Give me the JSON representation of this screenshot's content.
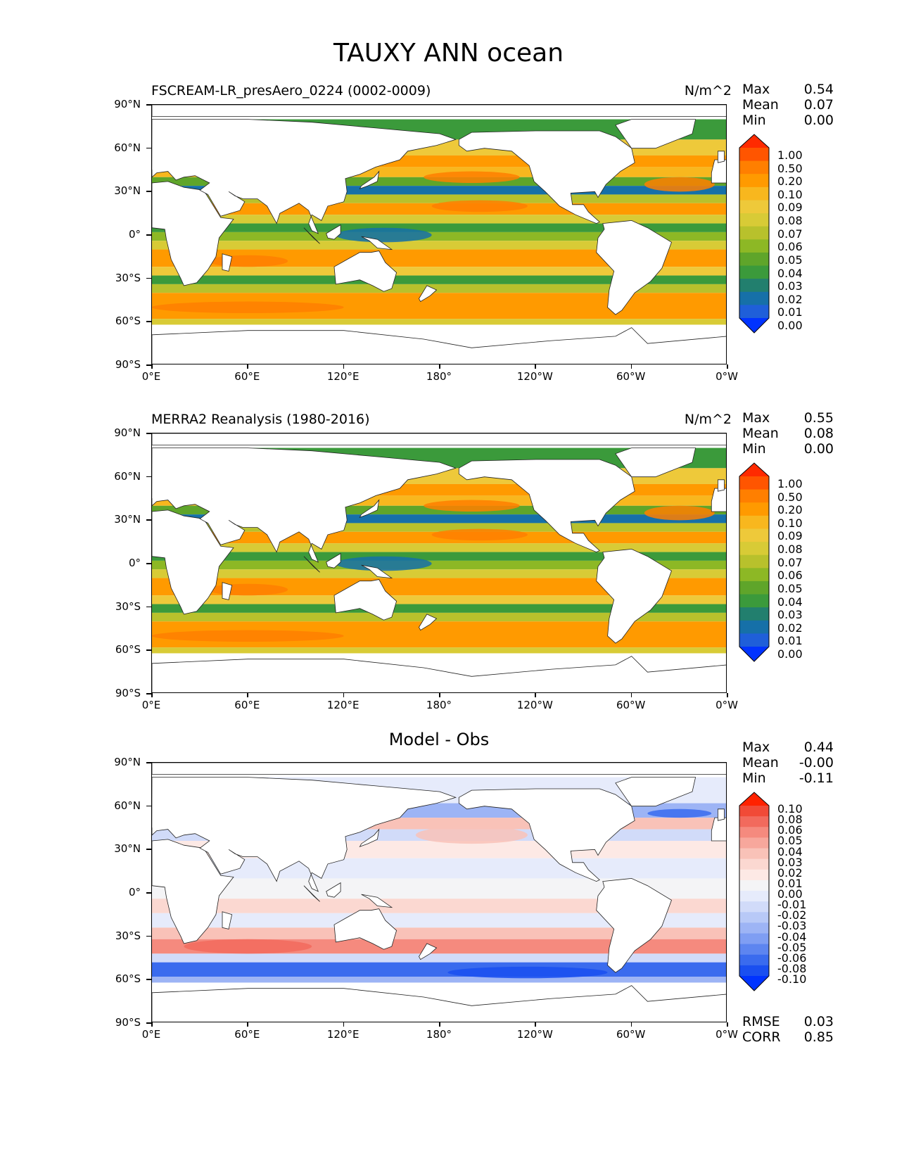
{
  "title": "TAUXY ANN ocean",
  "panels": [
    {
      "name": "model",
      "title_left": "FSCREAM-LR_presAero_0224 (0002-0009)",
      "title_right": "N/m^2",
      "title_center": "",
      "stats": {
        "Max": "0.54",
        "Mean": "0.07",
        "Min": "0.00"
      },
      "colorbar": {
        "labels": [
          "1.00",
          "0.50",
          "0.20",
          "0.10",
          "0.09",
          "0.08",
          "0.07",
          "0.06",
          "0.05",
          "0.04",
          "0.03",
          "0.02",
          "0.01",
          "0.00"
        ],
        "colors": [
          "#ff2a00",
          "#ff5500",
          "#ff7f00",
          "#ff9a00",
          "#f8b71e",
          "#eec93a",
          "#d8cb36",
          "#b8c12c",
          "#8db825",
          "#5fa52a",
          "#3b9a3b",
          "#227f6e",
          "#1670a8",
          "#1f5fd9",
          "#0033ff"
        ]
      }
    },
    {
      "name": "obs",
      "title_left": "MERRA2 Reanalysis (1980-2016)",
      "title_right": "N/m^2",
      "title_center": "",
      "stats": {
        "Max": "0.55",
        "Mean": "0.08",
        "Min": "0.00"
      },
      "colorbar": {
        "labels": [
          "1.00",
          "0.50",
          "0.20",
          "0.10",
          "0.09",
          "0.08",
          "0.07",
          "0.06",
          "0.05",
          "0.04",
          "0.03",
          "0.02",
          "0.01",
          "0.00"
        ],
        "colors": [
          "#ff2a00",
          "#ff5500",
          "#ff7f00",
          "#ff9a00",
          "#f8b71e",
          "#eec93a",
          "#d8cb36",
          "#b8c12c",
          "#8db825",
          "#5fa52a",
          "#3b9a3b",
          "#227f6e",
          "#1670a8",
          "#1f5fd9",
          "#0033ff"
        ]
      }
    },
    {
      "name": "diff",
      "title_left": "",
      "title_right": "",
      "title_center": "Model - Obs",
      "stats": {
        "Max": "0.44",
        "Mean": "-0.00",
        "Min": "-0.11"
      },
      "stats_bottom": {
        "RMSE": "0.03",
        "CORR": "0.85"
      },
      "colorbar": {
        "labels": [
          "0.10",
          "0.08",
          "0.06",
          "0.05",
          "0.04",
          "0.03",
          "0.02",
          "0.01",
          "0.00",
          "-0.01",
          "-0.02",
          "-0.03",
          "-0.04",
          "-0.05",
          "-0.06",
          "-0.08",
          "-0.10"
        ],
        "colors": [
          "#ff2200",
          "#f14a37",
          "#f26a5d",
          "#f58a7e",
          "#f7a79c",
          "#f9c2b8",
          "#fbd8d1",
          "#fde9e5",
          "#f4f4f6",
          "#e6ebfb",
          "#d1dbf9",
          "#b8c9f7",
          "#9db4f5",
          "#7f9ef3",
          "#5d85f0",
          "#3a6bee",
          "#1a4ff0",
          "#0033ff"
        ]
      }
    }
  ],
  "axes": {
    "yticks": [
      "90°N",
      "60°N",
      "30°N",
      "0°",
      "30°S",
      "60°S",
      "90°S"
    ],
    "xticks": [
      "0°E",
      "60°E",
      "120°E",
      "180°",
      "120°W",
      "60°W",
      "0°W"
    ]
  },
  "chart_data": [
    {
      "type": "heatmap",
      "title": "FSCREAM-LR_presAero_0224 (0002-0009)",
      "units": "N/m^2",
      "x_range": [
        0,
        360
      ],
      "y_range": [
        -90,
        90
      ],
      "levels": [
        0.0,
        0.01,
        0.02,
        0.03,
        0.04,
        0.05,
        0.06,
        0.07,
        0.08,
        0.09,
        0.1,
        0.2,
        0.5,
        1.0
      ],
      "summary": {
        "max": 0.54,
        "mean": 0.07,
        "min": 0.0
      }
    },
    {
      "type": "heatmap",
      "title": "MERRA2 Reanalysis (1980-2016)",
      "units": "N/m^2",
      "x_range": [
        0,
        360
      ],
      "y_range": [
        -90,
        90
      ],
      "levels": [
        0.0,
        0.01,
        0.02,
        0.03,
        0.04,
        0.05,
        0.06,
        0.07,
        0.08,
        0.09,
        0.1,
        0.2,
        0.5,
        1.0
      ],
      "summary": {
        "max": 0.55,
        "mean": 0.08,
        "min": 0.0
      }
    },
    {
      "type": "heatmap",
      "title": "Model - Obs",
      "x_range": [
        0,
        360
      ],
      "y_range": [
        -90,
        90
      ],
      "levels": [
        -0.1,
        -0.08,
        -0.06,
        -0.05,
        -0.04,
        -0.03,
        -0.02,
        -0.01,
        0.0,
        0.01,
        0.02,
        0.03,
        0.04,
        0.05,
        0.06,
        0.08,
        0.1
      ],
      "summary": {
        "max": 0.44,
        "mean": -0.0,
        "min": -0.11,
        "rmse": 0.03,
        "corr": 0.85
      }
    }
  ]
}
